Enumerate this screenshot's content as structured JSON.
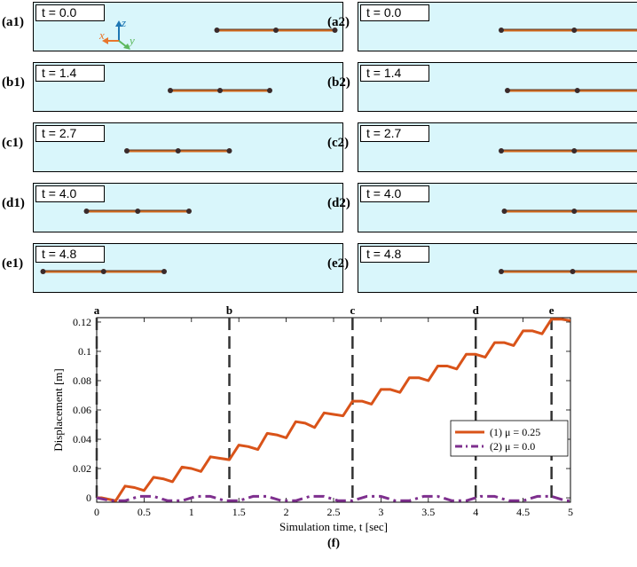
{
  "snapshots": {
    "left": [
      {
        "label": "(a1)",
        "time": "t = 0.0",
        "rod": [
          0.59,
          0.97
        ]
      },
      {
        "label": "(b1)",
        "time": "t = 1.4",
        "rod": [
          0.44,
          0.76
        ]
      },
      {
        "label": "(c1)",
        "time": "t = 2.7",
        "rod": [
          0.3,
          0.63
        ]
      },
      {
        "label": "(d1)",
        "time": "t = 4.0",
        "rod": [
          0.17,
          0.5
        ]
      },
      {
        "label": "(e1)",
        "time": "t = 4.8",
        "rod": [
          0.03,
          0.42
        ]
      }
    ],
    "right": [
      {
        "label": "(a2)",
        "time": "t = 0.0",
        "rod": [
          0.46,
          0.93
        ]
      },
      {
        "label": "(b2)",
        "time": "t = 1.4",
        "rod": [
          0.48,
          0.93
        ]
      },
      {
        "label": "(c2)",
        "time": "t = 2.7",
        "rod": [
          0.46,
          0.93
        ]
      },
      {
        "label": "(d2)",
        "time": "t = 4.0",
        "rod": [
          0.47,
          0.92
        ]
      },
      {
        "label": "(e2)",
        "time": "t = 4.8",
        "rod": [
          0.46,
          0.92
        ]
      }
    ],
    "axes_labels": {
      "x": "x",
      "y": "y",
      "z": "z"
    },
    "axes_colors": {
      "x": "#e8762c",
      "y": "#5cb85c",
      "z": "#1f77b4"
    },
    "background": "#d9f6fb",
    "rod_color": "#d2691e",
    "node_color": "#3a2a2a"
  },
  "chart_data": {
    "type": "line",
    "title": "",
    "xlabel": "Simulation time, t [sec]",
    "ylabel": "Displacement [m]",
    "caption": "(f)",
    "xlim": [
      0,
      5
    ],
    "ylim": [
      -0.003,
      0.123
    ],
    "xticks": [
      0,
      0.5,
      1,
      1.5,
      2,
      2.5,
      3,
      3.5,
      4,
      4.5,
      5
    ],
    "xtick_labels": [
      "0",
      "0.5",
      "1",
      "1.5",
      "2",
      "2.5",
      "3",
      "3.5",
      "4",
      "4.5",
      "5"
    ],
    "yticks": [
      0,
      0.02,
      0.04,
      0.06,
      0.08,
      0.1,
      0.12
    ],
    "ytick_labels": [
      "0",
      "0.02",
      "0.04",
      "0.06",
      "0.08",
      "0.1",
      "0.12"
    ],
    "markers": [
      {
        "label": "a",
        "x": 0.0
      },
      {
        "label": "b",
        "x": 1.4
      },
      {
        "label": "c",
        "x": 2.7
      },
      {
        "label": "d",
        "x": 4.0
      },
      {
        "label": "e",
        "x": 4.8
      }
    ],
    "legend_position": "right",
    "series": [
      {
        "name": "(1) μ = 0.25",
        "color": "#d95319",
        "dash": "solid",
        "x": [
          0,
          0.05,
          0.2,
          0.3,
          0.4,
          0.5,
          0.6,
          0.7,
          0.8,
          0.9,
          1.0,
          1.1,
          1.2,
          1.3,
          1.4,
          1.5,
          1.6,
          1.7,
          1.8,
          1.9,
          2.0,
          2.1,
          2.2,
          2.3,
          2.4,
          2.5,
          2.6,
          2.7,
          2.8,
          2.9,
          3.0,
          3.1,
          3.2,
          3.3,
          3.4,
          3.5,
          3.6,
          3.7,
          3.8,
          3.9,
          4.0,
          4.1,
          4.2,
          4.3,
          4.4,
          4.5,
          4.6,
          4.7,
          4.8,
          4.9,
          5.0
        ],
        "y": [
          0.0,
          0.0,
          -0.002,
          0.008,
          0.007,
          0.005,
          0.014,
          0.013,
          0.011,
          0.021,
          0.02,
          0.018,
          0.028,
          0.027,
          0.026,
          0.036,
          0.035,
          0.033,
          0.044,
          0.043,
          0.041,
          0.052,
          0.051,
          0.048,
          0.058,
          0.057,
          0.056,
          0.066,
          0.066,
          0.064,
          0.074,
          0.074,
          0.072,
          0.082,
          0.082,
          0.08,
          0.09,
          0.09,
          0.088,
          0.098,
          0.098,
          0.096,
          0.106,
          0.106,
          0.104,
          0.114,
          0.114,
          0.112,
          0.122,
          0.122,
          0.121
        ]
      },
      {
        "name": "(2) μ = 0.0",
        "color": "#7e2f8e",
        "dash": "dashdot",
        "x": [
          0,
          0.15,
          0.3,
          0.45,
          0.6,
          0.75,
          0.9,
          1.05,
          1.2,
          1.35,
          1.5,
          1.65,
          1.8,
          1.95,
          2.1,
          2.25,
          2.4,
          2.55,
          2.7,
          2.85,
          3.0,
          3.15,
          3.3,
          3.45,
          3.6,
          3.75,
          3.9,
          4.05,
          4.2,
          4.35,
          4.5,
          4.65,
          4.8,
          4.95,
          5.0
        ],
        "y": [
          0.0,
          -0.002,
          -0.002,
          0.001,
          0.001,
          -0.002,
          -0.002,
          0.001,
          0.001,
          -0.002,
          -0.002,
          0.001,
          0.001,
          -0.002,
          -0.002,
          0.001,
          0.001,
          -0.002,
          -0.002,
          0.001,
          0.001,
          -0.002,
          -0.002,
          0.001,
          0.001,
          -0.002,
          -0.002,
          0.001,
          0.001,
          -0.002,
          -0.002,
          0.001,
          0.001,
          -0.002,
          -0.002
        ]
      }
    ]
  }
}
